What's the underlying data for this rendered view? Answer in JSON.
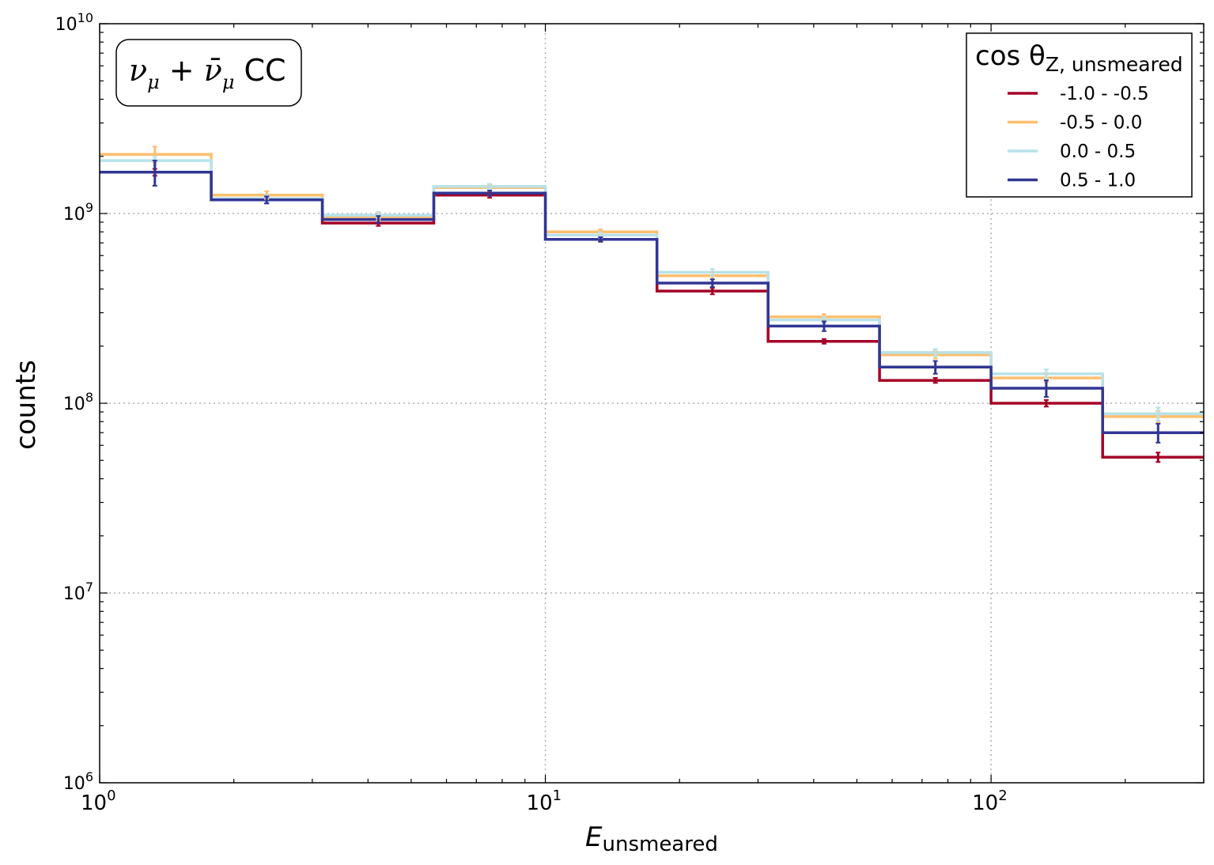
{
  "chart_data": {
    "type": "step",
    "title_box": {
      "main": "ν",
      "sub": "μ",
      "plus": " + ",
      "main2": "ν̄",
      "sub2": "μ",
      "suffix": " CC"
    },
    "xlabel": {
      "main": "E",
      "sub": "unsmeared"
    },
    "ylabel": "counts",
    "xscale": "log",
    "yscale": "log",
    "xlim": [
      1,
      300
    ],
    "ylim": [
      1000000,
      10000000000
    ],
    "grid": true,
    "legend_position": "top-right",
    "legend_title": {
      "main": "cos θ",
      "sub": "Z, unsmeared"
    },
    "x_ticks": [
      {
        "base": "10",
        "exp": "0"
      },
      {
        "base": "10",
        "exp": "1"
      },
      {
        "base": "10",
        "exp": "2"
      }
    ],
    "y_ticks": [
      {
        "base": "10",
        "exp": "6"
      },
      {
        "base": "10",
        "exp": "7"
      },
      {
        "base": "10",
        "exp": "8"
      },
      {
        "base": "10",
        "exp": "9"
      },
      {
        "base": "10",
        "exp": "10"
      }
    ],
    "bin_edges": [
      1,
      1.78,
      3.16,
      5.62,
      10,
      17.8,
      31.6,
      56.2,
      100,
      178,
      300
    ],
    "bin_centers": [
      1.33,
      2.37,
      4.22,
      7.5,
      13.3,
      23.7,
      42.2,
      75,
      133,
      237
    ],
    "series": [
      {
        "name": "-1.0 - -0.5",
        "color": "#a50026",
        "values": [
          1650000000,
          1180000000,
          890000000,
          1250000000,
          730000000,
          390000000,
          212000000,
          132000000,
          100000000,
          52000000
        ],
        "errors": [
          70000000,
          50000000,
          30000000,
          40000000,
          20000000,
          15000000,
          6000000,
          4000000,
          4000000,
          3000000
        ]
      },
      {
        "name": "-0.5 - 0.0",
        "color": "#fdbf6f",
        "values": [
          2050000000,
          1250000000,
          960000000,
          1370000000,
          800000000,
          470000000,
          285000000,
          180000000,
          136000000,
          85000000
        ],
        "errors": [
          200000000,
          60000000,
          40000000,
          45000000,
          25000000,
          20000000,
          10000000,
          8000000,
          7000000,
          6000000
        ]
      },
      {
        "name": "0.0 - 0.5",
        "color": "#b8e2ea",
        "values": [
          1900000000,
          1200000000,
          980000000,
          1390000000,
          770000000,
          490000000,
          275000000,
          185000000,
          143000000,
          88000000
        ],
        "errors": [
          100000000,
          50000000,
          40000000,
          45000000,
          25000000,
          20000000,
          10000000,
          8000000,
          8000000,
          7000000
        ]
      },
      {
        "name": "0.5 - 1.0",
        "color": "#313695",
        "values": [
          1650000000,
          1180000000,
          930000000,
          1280000000,
          730000000,
          430000000,
          255000000,
          155000000,
          120000000,
          70000000
        ],
        "errors": [
          250000000,
          50000000,
          40000000,
          40000000,
          20000000,
          20000000,
          15000000,
          12000000,
          12000000,
          8000000
        ]
      }
    ]
  }
}
